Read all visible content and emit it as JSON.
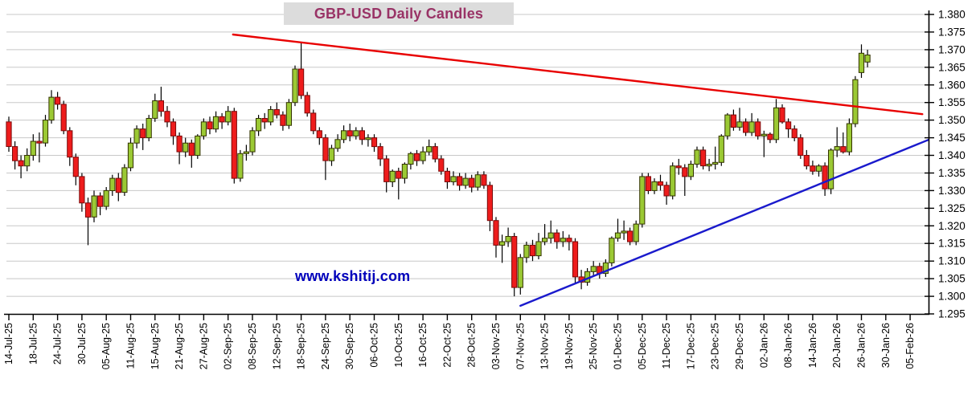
{
  "title": "GBP-USD Daily Candles",
  "watermark": "www.kshitij.com",
  "colors": {
    "title_fg": "#993366",
    "title_bg": "#dcdcdc",
    "watermark": "#0000bb",
    "bull_fill": "#9bc934",
    "bull_border": "#333300",
    "bear_fill": "#ee1c1c",
    "bear_border": "#7a0808",
    "wick": "#000000",
    "grid": "#c8c8c8",
    "axis": "#000000",
    "label": "#000000",
    "resistance_line": "#e80000",
    "support_line": "#1a1acc"
  },
  "chart_data": {
    "type": "candlestick",
    "title": "GBP-USD Daily Candles",
    "xlabel": "",
    "ylabel": "",
    "grid": "horizontal",
    "y_axis_side": "right",
    "y_min": 1.295,
    "y_max": 1.38,
    "y_tick_step": 0.005,
    "y_tick_labels": [
      "1.295",
      "1.300",
      "1.305",
      "1.310",
      "1.315",
      "1.320",
      "1.325",
      "1.330",
      "1.335",
      "1.340",
      "1.345",
      "1.350",
      "1.355",
      "1.360",
      "1.365",
      "1.370",
      "1.375",
      "1.380"
    ],
    "x_tick_labels": [
      "14-Jul-25",
      "18-Jul-25",
      "24-Jul-25",
      "30-Jul-25",
      "05-Aug-25",
      "11-Aug-25",
      "15-Aug-25",
      "21-Aug-25",
      "27-Aug-25",
      "02-Sep-25",
      "08-Sep-25",
      "12-Sep-25",
      "18-Sep-25",
      "24-Sep-25",
      "30-Sep-25",
      "06-Oct-25",
      "10-Oct-25",
      "16-Oct-25",
      "22-Oct-25",
      "28-Oct-25",
      "03-Nov-25",
      "07-Nov-25",
      "13-Nov-25",
      "19-Nov-25",
      "25-Nov-25",
      "01-Dec-25",
      "05-Dec-25",
      "11-Dec-25",
      "17-Dec-25",
      "23-Dec-25",
      "29-Dec-25",
      "02-Jan-26",
      "08-Jan-26",
      "14-Jan-26",
      "20-Jan-26",
      "26-Jan-26",
      "30-Jan-26",
      "05-Feb-26"
    ],
    "x_ticks_every_n_candles": 4,
    "total_slots": 149,
    "candle_columns": [
      "date",
      "open",
      "high",
      "low",
      "close"
    ],
    "candles": [
      [
        "14-Jul-25",
        1.3495,
        1.351,
        1.341,
        1.3425
      ],
      [
        "15-Jul-25",
        1.3425,
        1.344,
        1.336,
        1.3385
      ],
      [
        "16-Jul-25",
        1.3385,
        1.34,
        1.3335,
        1.337
      ],
      [
        "17-Jul-25",
        1.337,
        1.342,
        1.3355,
        1.34
      ],
      [
        "18-Jul-25",
        1.34,
        1.346,
        1.3385,
        1.344
      ],
      [
        "21-Jul-25",
        1.344,
        1.3465,
        1.338,
        1.3435
      ],
      [
        "22-Jul-25",
        1.3435,
        1.3515,
        1.3425,
        1.35
      ],
      [
        "23-Jul-25",
        1.35,
        1.3585,
        1.349,
        1.3565
      ],
      [
        "24-Jul-25",
        1.3565,
        1.358,
        1.353,
        1.3545
      ],
      [
        "25-Jul-25",
        1.3545,
        1.3555,
        1.346,
        1.347
      ],
      [
        "28-Jul-25",
        1.347,
        1.348,
        1.337,
        1.3395
      ],
      [
        "29-Jul-25",
        1.3395,
        1.3405,
        1.3315,
        1.334
      ],
      [
        "30-Jul-25",
        1.334,
        1.335,
        1.324,
        1.3265
      ],
      [
        "31-Jul-25",
        1.3265,
        1.328,
        1.3145,
        1.3225
      ],
      [
        "01-Aug-25",
        1.3225,
        1.33,
        1.321,
        1.3285
      ],
      [
        "04-Aug-25",
        1.3285,
        1.3295,
        1.323,
        1.3255
      ],
      [
        "05-Aug-25",
        1.3255,
        1.331,
        1.3245,
        1.33
      ],
      [
        "06-Aug-25",
        1.33,
        1.3345,
        1.3285,
        1.3335
      ],
      [
        "07-Aug-25",
        1.3335,
        1.335,
        1.327,
        1.3295
      ],
      [
        "08-Aug-25",
        1.3295,
        1.3375,
        1.3285,
        1.3365
      ],
      [
        "11-Aug-25",
        1.3365,
        1.345,
        1.3355,
        1.3435
      ],
      [
        "12-Aug-25",
        1.3435,
        1.3485,
        1.342,
        1.3475
      ],
      [
        "13-Aug-25",
        1.3475,
        1.349,
        1.3415,
        1.345
      ],
      [
        "14-Aug-25",
        1.345,
        1.3515,
        1.344,
        1.3505
      ],
      [
        "15-Aug-25",
        1.3505,
        1.3575,
        1.3495,
        1.3555
      ],
      [
        "18-Aug-25",
        1.3555,
        1.3595,
        1.351,
        1.3525
      ],
      [
        "19-Aug-25",
        1.3525,
        1.354,
        1.348,
        1.3495
      ],
      [
        "20-Aug-25",
        1.3495,
        1.3505,
        1.343,
        1.3455
      ],
      [
        "21-Aug-25",
        1.3455,
        1.3465,
        1.3375,
        1.341
      ],
      [
        "22-Aug-25",
        1.341,
        1.345,
        1.3395,
        1.3435
      ],
      [
        "25-Aug-25",
        1.3435,
        1.3445,
        1.3365,
        1.34
      ],
      [
        "26-Aug-25",
        1.34,
        1.346,
        1.339,
        1.3455
      ],
      [
        "27-Aug-25",
        1.3455,
        1.3505,
        1.3445,
        1.3495
      ],
      [
        "28-Aug-25",
        1.3495,
        1.351,
        1.346,
        1.3475
      ],
      [
        "29-Aug-25",
        1.3475,
        1.3525,
        1.3465,
        1.351
      ],
      [
        "01-Sep-25",
        1.351,
        1.352,
        1.3475,
        1.3495
      ],
      [
        "02-Sep-25",
        1.3495,
        1.354,
        1.3485,
        1.3525
      ],
      [
        "03-Sep-25",
        1.3525,
        1.3535,
        1.332,
        1.3335
      ],
      [
        "04-Sep-25",
        1.3335,
        1.3415,
        1.3325,
        1.3405
      ],
      [
        "05-Sep-25",
        1.3405,
        1.343,
        1.3385,
        1.341
      ],
      [
        "08-Sep-25",
        1.341,
        1.348,
        1.34,
        1.347
      ],
      [
        "09-Sep-25",
        1.347,
        1.3515,
        1.3455,
        1.3505
      ],
      [
        "10-Sep-25",
        1.3505,
        1.352,
        1.3475,
        1.3495
      ],
      [
        "11-Sep-25",
        1.3495,
        1.354,
        1.3485,
        1.353
      ],
      [
        "12-Sep-25",
        1.353,
        1.355,
        1.3505,
        1.3515
      ],
      [
        "15-Sep-25",
        1.3515,
        1.3525,
        1.347,
        1.3485
      ],
      [
        "16-Sep-25",
        1.3485,
        1.356,
        1.3475,
        1.355
      ],
      [
        "17-Sep-25",
        1.355,
        1.3655,
        1.354,
        1.3645
      ],
      [
        "18-Sep-25",
        1.3645,
        1.372,
        1.356,
        1.357
      ],
      [
        "19-Sep-25",
        1.357,
        1.358,
        1.351,
        1.352
      ],
      [
        "22-Sep-25",
        1.352,
        1.353,
        1.346,
        1.347
      ],
      [
        "23-Sep-25",
        1.347,
        1.348,
        1.343,
        1.345
      ],
      [
        "24-Sep-25",
        1.345,
        1.346,
        1.333,
        1.3385
      ],
      [
        "25-Sep-25",
        1.3385,
        1.343,
        1.337,
        1.342
      ],
      [
        "26-Sep-25",
        1.342,
        1.346,
        1.341,
        1.3445
      ],
      [
        "29-Sep-25",
        1.3445,
        1.3485,
        1.3435,
        1.347
      ],
      [
        "30-Sep-25",
        1.347,
        1.349,
        1.344,
        1.3455
      ],
      [
        "01-Oct-25",
        1.3455,
        1.348,
        1.3445,
        1.347
      ],
      [
        "02-Oct-25",
        1.347,
        1.348,
        1.343,
        1.3445
      ],
      [
        "03-Oct-25",
        1.3445,
        1.346,
        1.3425,
        1.345
      ],
      [
        "06-Oct-25",
        1.345,
        1.346,
        1.341,
        1.3425
      ],
      [
        "07-Oct-25",
        1.3425,
        1.3435,
        1.337,
        1.339
      ],
      [
        "08-Oct-25",
        1.339,
        1.34,
        1.3295,
        1.3325
      ],
      [
        "09-Oct-25",
        1.3325,
        1.336,
        1.331,
        1.3355
      ],
      [
        "10-Oct-25",
        1.3355,
        1.3365,
        1.3275,
        1.3335
      ],
      [
        "13-Oct-25",
        1.3335,
        1.338,
        1.332,
        1.3375
      ],
      [
        "14-Oct-25",
        1.3375,
        1.341,
        1.336,
        1.3405
      ],
      [
        "15-Oct-25",
        1.3405,
        1.3415,
        1.337,
        1.3385
      ],
      [
        "16-Oct-25",
        1.3385,
        1.3425,
        1.3375,
        1.341
      ],
      [
        "17-Oct-25",
        1.341,
        1.3445,
        1.34,
        1.3425
      ],
      [
        "20-Oct-25",
        1.3425,
        1.3435,
        1.338,
        1.339
      ],
      [
        "21-Oct-25",
        1.339,
        1.34,
        1.3345,
        1.3355
      ],
      [
        "22-Oct-25",
        1.3355,
        1.3365,
        1.3305,
        1.3325
      ],
      [
        "23-Oct-25",
        1.3325,
        1.3355,
        1.3315,
        1.334
      ],
      [
        "24-Oct-25",
        1.334,
        1.335,
        1.33,
        1.3315
      ],
      [
        "27-Oct-25",
        1.3315,
        1.335,
        1.3305,
        1.3335
      ],
      [
        "28-Oct-25",
        1.3335,
        1.3345,
        1.3295,
        1.331
      ],
      [
        "29-Oct-25",
        1.331,
        1.3355,
        1.33,
        1.3345
      ],
      [
        "30-Oct-25",
        1.3345,
        1.3355,
        1.3305,
        1.3315
      ],
      [
        "31-Oct-25",
        1.3315,
        1.3325,
        1.3185,
        1.3215
      ],
      [
        "03-Nov-25",
        1.3215,
        1.3225,
        1.311,
        1.3145
      ],
      [
        "04-Nov-25",
        1.3145,
        1.3175,
        1.3095,
        1.3155
      ],
      [
        "05-Nov-25",
        1.3155,
        1.3195,
        1.314,
        1.317
      ],
      [
        "06-Nov-25",
        1.317,
        1.318,
        1.3,
        1.3025
      ],
      [
        "07-Nov-25",
        1.3025,
        1.312,
        1.3005,
        1.311
      ],
      [
        "10-Nov-25",
        1.311,
        1.3155,
        1.3095,
        1.3145
      ],
      [
        "11-Nov-25",
        1.3145,
        1.316,
        1.31,
        1.3115
      ],
      [
        "12-Nov-25",
        1.3115,
        1.318,
        1.3105,
        1.3155
      ],
      [
        "13-Nov-25",
        1.3155,
        1.3205,
        1.3145,
        1.3165
      ],
      [
        "14-Nov-25",
        1.3165,
        1.3215,
        1.315,
        1.318
      ],
      [
        "17-Nov-25",
        1.318,
        1.319,
        1.3135,
        1.3155
      ],
      [
        "18-Nov-25",
        1.3155,
        1.3185,
        1.314,
        1.3165
      ],
      [
        "19-Nov-25",
        1.3165,
        1.3175,
        1.313,
        1.3155
      ],
      [
        "20-Nov-25",
        1.3155,
        1.3165,
        1.3035,
        1.3055
      ],
      [
        "21-Nov-25",
        1.3055,
        1.3075,
        1.302,
        1.304
      ],
      [
        "24-Nov-25",
        1.304,
        1.308,
        1.303,
        1.307
      ],
      [
        "25-Nov-25",
        1.307,
        1.31,
        1.3055,
        1.3085
      ],
      [
        "26-Nov-25",
        1.3085,
        1.3095,
        1.305,
        1.3065
      ],
      [
        "27-Nov-25",
        1.3065,
        1.3105,
        1.3055,
        1.3095
      ],
      [
        "28-Nov-25",
        1.3095,
        1.317,
        1.3085,
        1.3165
      ],
      [
        "01-Dec-25",
        1.3165,
        1.322,
        1.3155,
        1.318
      ],
      [
        "02-Dec-25",
        1.318,
        1.3215,
        1.316,
        1.3185
      ],
      [
        "03-Dec-25",
        1.3185,
        1.3195,
        1.3145,
        1.3155
      ],
      [
        "04-Dec-25",
        1.3155,
        1.3215,
        1.3145,
        1.3205
      ],
      [
        "05-Dec-25",
        1.3205,
        1.335,
        1.3195,
        1.334
      ],
      [
        "08-Dec-25",
        1.334,
        1.335,
        1.329,
        1.33
      ],
      [
        "09-Dec-25",
        1.33,
        1.3335,
        1.329,
        1.3325
      ],
      [
        "10-Dec-25",
        1.3325,
        1.3345,
        1.33,
        1.3315
      ],
      [
        "11-Dec-25",
        1.3315,
        1.3325,
        1.326,
        1.3285
      ],
      [
        "12-Dec-25",
        1.3285,
        1.338,
        1.3275,
        1.337
      ],
      [
        "15-Dec-25",
        1.337,
        1.339,
        1.3345,
        1.3365
      ],
      [
        "16-Dec-25",
        1.3365,
        1.3375,
        1.3285,
        1.334
      ],
      [
        "17-Dec-25",
        1.334,
        1.3385,
        1.333,
        1.3375
      ],
      [
        "18-Dec-25",
        1.3375,
        1.3425,
        1.3365,
        1.3415
      ],
      [
        "19-Dec-25",
        1.3415,
        1.3425,
        1.336,
        1.337
      ],
      [
        "22-Dec-25",
        1.337,
        1.339,
        1.3355,
        1.3375
      ],
      [
        "23-Dec-25",
        1.3375,
        1.3425,
        1.336,
        1.338
      ],
      [
        "24-Dec-25",
        1.338,
        1.346,
        1.337,
        1.3455
      ],
      [
        "25-Dec-25",
        1.3455,
        1.352,
        1.3445,
        1.3515
      ],
      [
        "26-Dec-25",
        1.3515,
        1.353,
        1.347,
        1.348
      ],
      [
        "29-Dec-25",
        1.348,
        1.3535,
        1.347,
        1.3495
      ],
      [
        "30-Dec-25",
        1.3495,
        1.3505,
        1.3455,
        1.3465
      ],
      [
        "31-Dec-25",
        1.3465,
        1.352,
        1.3455,
        1.3495
      ],
      [
        "01-Jan-26",
        1.3495,
        1.3505,
        1.3445,
        1.3455
      ],
      [
        "02-Jan-26",
        1.3455,
        1.347,
        1.3395,
        1.346
      ],
      [
        "05-Jan-26",
        1.346,
        1.3465,
        1.3435,
        1.3445
      ],
      [
        "06-Jan-26",
        1.3445,
        1.356,
        1.3435,
        1.3535
      ],
      [
        "07-Jan-26",
        1.3535,
        1.3545,
        1.349,
        1.3495
      ],
      [
        "08-Jan-26",
        1.3495,
        1.3505,
        1.345,
        1.3475
      ],
      [
        "09-Jan-26",
        1.3475,
        1.3485,
        1.344,
        1.345
      ],
      [
        "12-Jan-26",
        1.345,
        1.346,
        1.339,
        1.34
      ],
      [
        "13-Jan-26",
        1.34,
        1.3415,
        1.336,
        1.337
      ],
      [
        "14-Jan-26",
        1.337,
        1.3385,
        1.3345,
        1.3355
      ],
      [
        "15-Jan-26",
        1.3355,
        1.3375,
        1.334,
        1.337
      ],
      [
        "16-Jan-26",
        1.337,
        1.338,
        1.3285,
        1.3305
      ],
      [
        "19-Jan-26",
        1.3305,
        1.342,
        1.329,
        1.3415
      ],
      [
        "20-Jan-26",
        1.3415,
        1.348,
        1.3395,
        1.3425
      ],
      [
        "21-Jan-26",
        1.3425,
        1.3465,
        1.3405,
        1.341
      ],
      [
        "22-Jan-26",
        1.341,
        1.3505,
        1.34,
        1.349
      ],
      [
        "23-Jan-26",
        1.349,
        1.3625,
        1.348,
        1.3615
      ],
      [
        "26-Jan-26",
        1.3635,
        1.3715,
        1.362,
        1.369
      ],
      [
        "27-Jan-26",
        1.3665,
        1.37,
        1.365,
        1.3685
      ]
    ],
    "trendlines": [
      {
        "name": "descending-resistance",
        "color_key": "resistance_line",
        "from": {
          "slot": 36.8,
          "price": 1.3743
        },
        "to": {
          "slot": 150.0,
          "price": 1.3517
        }
      },
      {
        "name": "ascending-support",
        "color_key": "support_line",
        "from": {
          "slot": 84.0,
          "price": 1.2973
        },
        "to": {
          "slot": 151.0,
          "price": 1.3444
        }
      }
    ]
  }
}
